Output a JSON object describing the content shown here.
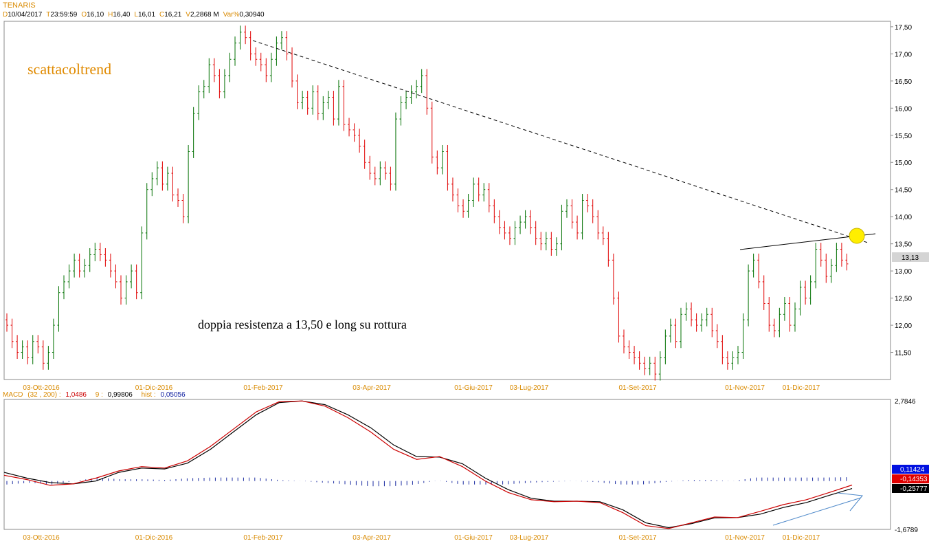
{
  "header": {
    "symbol": "TENARIS",
    "fields": [
      {
        "key": "D",
        "value": "10/04/2017"
      },
      {
        "key": "T",
        "value": "23:59:59"
      },
      {
        "key": "O",
        "value": "16,10"
      },
      {
        "key": "H",
        "value": "16,40"
      },
      {
        "key": "L",
        "value": "16,01"
      },
      {
        "key": "C",
        "value": "16,21"
      },
      {
        "key": "V",
        "value": "2,2868 M"
      },
      {
        "key": "Var%",
        "value": "0,30940"
      }
    ]
  },
  "annotations": {
    "watermark": "scattacoltrend",
    "note": "doppia resistenza a 13,50 e long su rottura"
  },
  "macd_header": {
    "label": "MACD",
    "params": "(32 , 200) :",
    "macd_value": "1,0486",
    "signal_period": "9 :",
    "signal_value": "0,99806",
    "hist_label": "hist :",
    "hist_value": "0,05056"
  },
  "colors": {
    "up": "#007000",
    "down": "#e00000",
    "accent": "#d98a00",
    "macd_line": "#cc0000",
    "signal_line": "#000000",
    "hist": "#1a2aa0",
    "arrow": "#4a86c8",
    "marker": "#ffee00"
  },
  "chart_data": [
    {
      "type": "candlestick",
      "title": "TENARIS",
      "ylim": [
        11.0,
        17.6
      ],
      "y_ticks": [
        "17,50",
        "17,00",
        "16,50",
        "16,00",
        "15,50",
        "15,00",
        "14,50",
        "14,00",
        "13,50",
        "13,00",
        "12,50",
        "12,00",
        "11,50"
      ],
      "x_labels": [
        "03-Ott-2016",
        "01-Dic-2016",
        "01-Feb-2017",
        "03-Apr-2017",
        "01-Giu-2017",
        "03-Lug-2017",
        "01-Set-2017",
        "01-Nov-2017",
        "01-Dic-2017"
      ],
      "last_price": "13,13",
      "close_series": [
        12.0,
        11.7,
        11.5,
        11.6,
        11.4,
        11.7,
        11.6,
        11.3,
        11.5,
        12.0,
        12.6,
        12.8,
        13.0,
        13.2,
        13.0,
        13.1,
        13.3,
        13.4,
        13.3,
        13.2,
        13.0,
        12.8,
        12.5,
        12.8,
        13.0,
        12.6,
        13.7,
        14.5,
        14.7,
        14.9,
        14.6,
        14.8,
        14.4,
        14.3,
        14.0,
        15.2,
        15.9,
        16.3,
        16.4,
        16.8,
        16.6,
        16.3,
        16.6,
        16.9,
        17.2,
        17.4,
        17.3,
        17.0,
        16.9,
        16.8,
        16.6,
        16.9,
        17.2,
        17.3,
        17.0,
        16.5,
        16.1,
        16.2,
        16.0,
        16.3,
        15.9,
        16.1,
        16.2,
        15.8,
        16.4,
        15.7,
        15.6,
        15.5,
        15.3,
        15.0,
        14.8,
        14.7,
        14.9,
        14.8,
        14.6,
        15.8,
        16.1,
        16.2,
        16.3,
        16.4,
        16.6,
        16.0,
        15.1,
        14.9,
        15.2,
        14.6,
        14.4,
        14.2,
        14.1,
        14.3,
        14.6,
        14.4,
        14.5,
        14.2,
        14.0,
        13.8,
        13.7,
        13.6,
        13.8,
        13.9,
        14.0,
        13.8,
        13.6,
        13.5,
        13.6,
        13.4,
        13.5,
        14.1,
        14.2,
        13.9,
        13.7,
        14.3,
        14.2,
        14.0,
        13.7,
        13.6,
        13.2,
        12.5,
        11.8,
        11.6,
        11.5,
        11.4,
        11.3,
        11.2,
        11.3,
        11.1,
        11.4,
        11.8,
        12.0,
        11.7,
        12.2,
        12.3,
        12.1,
        12.0,
        12.1,
        12.2,
        11.9,
        11.7,
        11.4,
        11.3,
        11.4,
        11.5,
        12.1,
        13.0,
        13.2,
        12.8,
        12.4,
        12.0,
        11.9,
        12.2,
        12.4,
        12.0,
        12.3,
        12.7,
        12.5,
        12.8,
        13.4,
        13.2,
        12.9,
        13.1,
        13.4,
        13.2,
        13.13
      ],
      "resistance_line_label": "",
      "highlight": "breakout point near 13,50"
    },
    {
      "type": "line",
      "title": "MACD",
      "ylim": [
        -1.6789,
        2.7846
      ],
      "y_ticks": [
        "2,7846",
        "-1,6789"
      ],
      "value_tags": [
        "0,11424",
        "-0,14353",
        "-0,25777"
      ],
      "x_labels": [
        "03-Ott-2016",
        "01-Dic-2016",
        "01-Feb-2017",
        "03-Apr-2017",
        "01-Giu-2017",
        "03-Lug-2017",
        "01-Set-2017",
        "01-Nov-2017",
        "01-Dic-2017"
      ],
      "series": [
        {
          "name": "MACD",
          "values": [
            0.2,
            0.05,
            -0.15,
            -0.1,
            0.1,
            0.35,
            0.5,
            0.45,
            0.7,
            1.2,
            1.8,
            2.4,
            2.75,
            2.78,
            2.6,
            2.2,
            1.7,
            1.1,
            0.75,
            0.85,
            0.5,
            0.0,
            -0.4,
            -0.65,
            -0.72,
            -0.7,
            -0.75,
            -1.1,
            -1.55,
            -1.65,
            -1.45,
            -1.25,
            -1.27,
            -1.05,
            -0.82,
            -0.65,
            -0.4,
            -0.14
          ]
        },
        {
          "name": "Signal",
          "values": [
            0.3,
            0.1,
            -0.05,
            -0.1,
            0.0,
            0.3,
            0.45,
            0.42,
            0.62,
            1.1,
            1.7,
            2.3,
            2.72,
            2.78,
            2.65,
            2.3,
            1.85,
            1.25,
            0.85,
            0.83,
            0.6,
            0.1,
            -0.3,
            -0.6,
            -0.7,
            -0.7,
            -0.72,
            -1.0,
            -1.45,
            -1.62,
            -1.48,
            -1.28,
            -1.27,
            -1.15,
            -0.92,
            -0.75,
            -0.5,
            -0.26
          ]
        },
        {
          "name": "hist",
          "values": [
            -0.1,
            -0.05,
            -0.1,
            0.0,
            0.1,
            0.05,
            0.05,
            0.03,
            0.08,
            0.1,
            0.1,
            0.1,
            0.03,
            0.0,
            -0.05,
            -0.1,
            -0.15,
            -0.15,
            -0.1,
            0.02,
            -0.1,
            -0.1,
            -0.1,
            -0.05,
            -0.02,
            0.0,
            -0.03,
            -0.1,
            -0.1,
            -0.03,
            0.03,
            0.03,
            0.0,
            0.1,
            0.1,
            0.1,
            0.1,
            0.11
          ]
        }
      ]
    }
  ]
}
